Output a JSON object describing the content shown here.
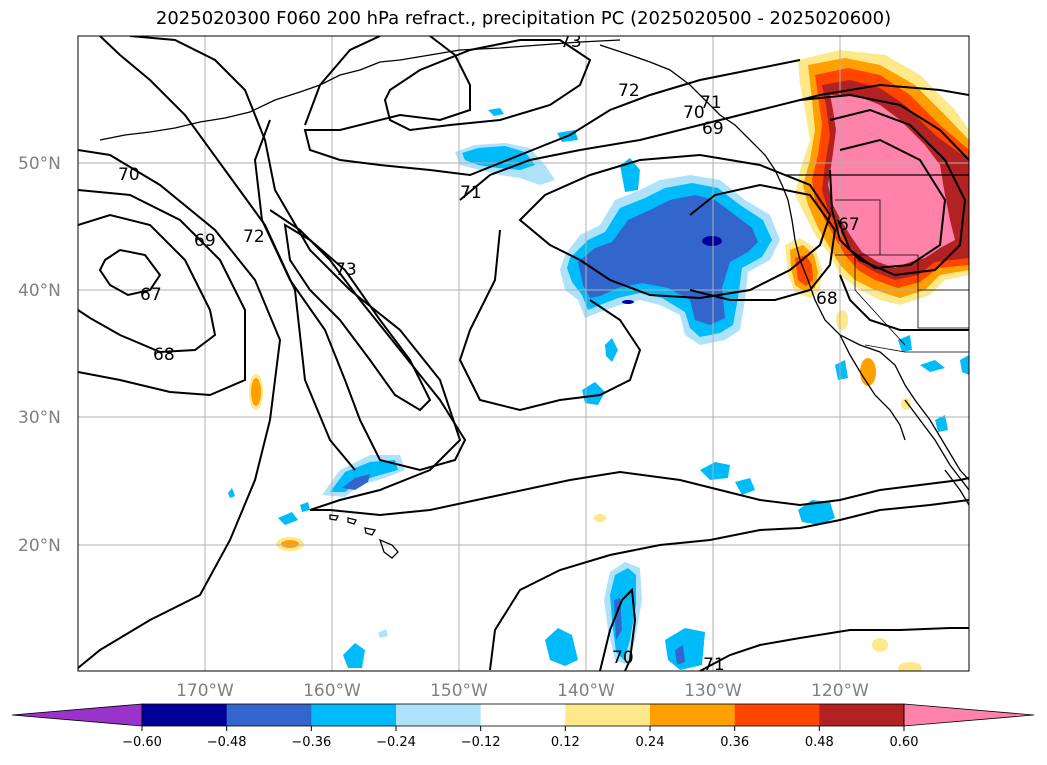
{
  "title": "2025020300 F060 200 hPa refract., precipitation PC (2025020500 - 2025020600)",
  "lat_labels": [
    "50°N",
    "40°N",
    "30°N",
    "20°N"
  ],
  "lon_labels": [
    "170°W",
    "160°W",
    "150°W",
    "140°W",
    "130°W",
    "120°W"
  ],
  "colorbar": {
    "tick_labels": [
      "−0.60",
      "−0.48",
      "−0.36",
      "−0.24",
      "−0.12",
      "0.12",
      "0.24",
      "0.36",
      "0.48",
      "0.60"
    ],
    "colors": [
      "#9933cc",
      "#000099",
      "#3366cc",
      "#00bbf9",
      "#aee2fa",
      "#ffffff",
      "#fde98a",
      "#ffa000",
      "#ff4500",
      "#b22222",
      "#ff82ab"
    ]
  },
  "contour_labels": [
    "73",
    "72",
    "70",
    "69",
    "70",
    "69",
    "72",
    "73",
    "71",
    "71",
    "67",
    "68",
    "67",
    "68",
    "70",
    "71"
  ],
  "colors": {
    "grid": "#b0b0b0",
    "contour": "#000000",
    "coast": "#000000"
  }
}
